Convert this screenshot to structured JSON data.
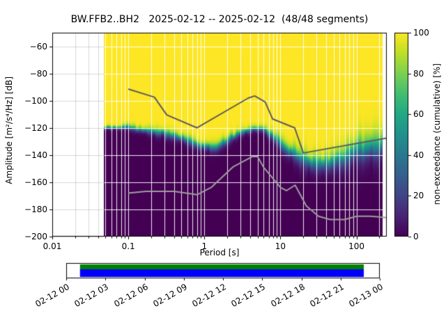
{
  "chart_data": {
    "type": "heatmap",
    "subtype": "ppsd-cumulative-spectral-plot",
    "title": "BW.FFB2..BH2   2025-02-12 -- 2025-02-12  (48/48 segments)",
    "xlabel": "Period [s]",
    "ylabel": "Amplitude [m²/s⁴/Hz] [dB]",
    "colorbar_label": "non-exceedance (cumulative) [%]",
    "x_scale": "log",
    "xlim": [
      0.01,
      250
    ],
    "ylim": [
      -200,
      -50
    ],
    "xticks": [
      0.01,
      0.1,
      1,
      10,
      100
    ],
    "xtick_labels": [
      "0.01",
      "0.1",
      "1",
      "10",
      "100"
    ],
    "yticks": [
      -60,
      -80,
      -100,
      -120,
      -140,
      -160,
      -180,
      -200
    ],
    "ytick_labels": [
      "−60",
      "−80",
      "−100",
      "−120",
      "−140",
      "−160",
      "−180",
      "−200"
    ],
    "colorbar_ticks": [
      0,
      20,
      40,
      60,
      80,
      100
    ],
    "colorbar_tick_labels": [
      "0",
      "20",
      "40",
      "60",
      "80",
      "100"
    ],
    "colorbar_range": [
      0,
      100
    ],
    "colormap": "viridis",
    "grid": true,
    "data_period_range": [
      0.048,
      220
    ],
    "cumulative_distribution": {
      "description": "non-exceedance cumulative percentage vs amplitude; median and spread (dB) per period",
      "periods": [
        0.048,
        0.07,
        0.1,
        0.13,
        0.2,
        0.3,
        0.5,
        0.7,
        1.0,
        1.4,
        2.0,
        3.0,
        4.5,
        6.0,
        8.0,
        10,
        14,
        20,
        30,
        45,
        70,
        100,
        150,
        220
      ],
      "median_db": [
        -120,
        -120,
        -119,
        -121,
        -122,
        -124,
        -127,
        -131,
        -134,
        -134,
        -129,
        -123,
        -120,
        -121,
        -126,
        -131,
        -138,
        -143,
        -146,
        -145,
        -141,
        -137,
        -134,
        -131
      ],
      "spread_db": [
        1.5,
        1.5,
        2,
        2,
        2.5,
        3,
        3,
        3,
        3,
        3,
        3,
        2.5,
        2,
        2.5,
        4,
        5,
        5,
        6,
        6,
        7,
        8,
        9,
        10,
        10
      ]
    },
    "noise_models": {
      "nhnm": {
        "name": "Peterson New High Noise Model",
        "color": "#5c5c5c",
        "periods": [
          0.1,
          0.22,
          0.32,
          0.8,
          3.8,
          4.6,
          6.3,
          7.9,
          15.4,
          20.0,
          250.0
        ],
        "db": [
          -91.5,
          -97.4,
          -110.5,
          -120.0,
          -98.0,
          -96.5,
          -101.0,
          -113.5,
          -120.0,
          -138.5,
          -127.5
        ]
      },
      "nlnm": {
        "name": "Peterson New Low Noise Model",
        "color": "#9e9e9e",
        "periods": [
          0.1,
          0.17,
          0.4,
          0.8,
          1.24,
          2.4,
          4.3,
          5.0,
          6.0,
          10.0,
          12.0,
          15.6,
          21.9,
          31.6,
          45.0,
          70.0,
          101.0,
          154.0,
          250.0
        ],
        "db": [
          -168.0,
          -166.7,
          -166.7,
          -169.2,
          -163.7,
          -148.6,
          -141.1,
          -141.1,
          -149.0,
          -163.8,
          -166.2,
          -162.1,
          -177.5,
          -185.0,
          -187.5,
          -187.5,
          -185.0,
          -185.0,
          -186.1
        ]
      }
    }
  },
  "timeline": {
    "tick_labels": [
      "02-12 00",
      "02-12 03",
      "02-12 06",
      "02-12 09",
      "02-12 12",
      "02-12 15",
      "02-12 18",
      "02-12 21",
      "02-13 00"
    ],
    "coverage": {
      "start_frac": 0.044,
      "end_frac": 0.949
    },
    "segment_bar_color": "#008000",
    "data_bar_color": "#0000ff"
  }
}
